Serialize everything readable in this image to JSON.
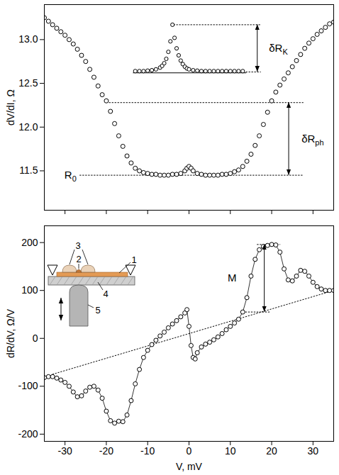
{
  "chart_data": [
    {
      "type": "scatter",
      "ylabel": "dV/dI, Ω",
      "marker": "circle",
      "color": "#000000",
      "tick_labels": "y",
      "xlim": [
        -35,
        35
      ],
      "xticks": [
        -30,
        -20,
        -10,
        0,
        10,
        20,
        30
      ],
      "ylim": [
        11.05,
        13.4
      ],
      "yticks": [
        11.5,
        {
          "value": 12,
          "label": "12.0"
        },
        12.5,
        {
          "value": 13,
          "label": "13.0"
        }
      ],
      "x": [
        -35,
        -34,
        -33,
        -32,
        -31,
        -30,
        -29,
        -28,
        -27,
        -26,
        -25,
        -24,
        -23,
        -22,
        -21,
        -20,
        -19,
        -18,
        -17,
        -16,
        -15,
        -14,
        -13,
        -12,
        -11,
        -10,
        -9,
        -8,
        -7,
        -6,
        -5,
        -4,
        -3,
        -2,
        -1,
        -0.5,
        0,
        0.5,
        1,
        2,
        3,
        4,
        5,
        6,
        7,
        8,
        9,
        10,
        11,
        12,
        13,
        14,
        15,
        16,
        17,
        18,
        19,
        20,
        21,
        22,
        23,
        24,
        25,
        26,
        27,
        28,
        29,
        30,
        31,
        32,
        33,
        34,
        35
      ],
      "values": [
        13.25,
        13.21,
        13.17,
        13.13,
        13.09,
        13.05,
        13.0,
        12.95,
        12.89,
        12.82,
        12.75,
        12.66,
        12.57,
        12.47,
        12.37,
        12.3,
        12.18,
        12.04,
        11.9,
        11.78,
        11.67,
        11.59,
        11.53,
        11.5,
        11.48,
        11.47,
        11.46,
        11.46,
        11.45,
        11.45,
        11.45,
        11.46,
        11.46,
        11.47,
        11.5,
        11.53,
        11.55,
        11.53,
        11.5,
        11.47,
        11.46,
        11.45,
        11.45,
        11.45,
        11.45,
        11.46,
        11.46,
        11.47,
        11.49,
        11.51,
        11.55,
        11.61,
        11.69,
        11.79,
        11.9,
        12.03,
        12.17,
        12.3,
        12.4,
        12.48,
        12.55,
        12.62,
        12.69,
        12.76,
        12.83,
        12.9,
        12.96,
        13.01,
        13.06,
        13.1,
        13.14,
        13.18,
        13.2
      ],
      "inset": {
        "x": [
          -13,
          -12,
          -11,
          -10,
          -9,
          -8,
          -7,
          -6.5,
          -6,
          -5.5,
          -5,
          -4.5,
          -4,
          -3.5,
          -3,
          -2.5,
          -2,
          -1.5,
          -1,
          -0.5,
          0,
          1,
          2,
          3,
          4,
          5,
          6,
          7,
          8,
          9,
          10,
          11,
          12,
          13
        ],
        "values": [
          12.64,
          12.64,
          12.64,
          12.645,
          12.65,
          12.66,
          12.68,
          12.7,
          12.73,
          12.78,
          12.86,
          12.98,
          13.17,
          13.02,
          12.9,
          12.82,
          12.76,
          12.72,
          12.69,
          12.67,
          12.66,
          12.65,
          12.645,
          12.64,
          12.64,
          12.64,
          12.64,
          12.64,
          12.64,
          12.64,
          12.64,
          12.64,
          12.64,
          12.64
        ],
        "axis": {
          "x": [
            -13.5,
            13.8
          ],
          "y": 12.62
        }
      },
      "dotted_lines": [
        {
          "x": [
            -3.7,
            17.3
          ],
          "y": [
            13.17,
            13.17
          ]
        },
        {
          "x": [
            13.8,
            17.3
          ],
          "y": [
            12.63,
            12.63
          ]
        },
        {
          "x": [
            -19.3,
            27.6
          ],
          "y": [
            12.28,
            12.28
          ]
        },
        {
          "x": [
            -26.4,
            27.6
          ],
          "y": [
            11.45,
            11.45
          ]
        }
      ],
      "arrows": [
        {
          "x": 16.6,
          "y": [
            12.63,
            13.17
          ],
          "text": "δR",
          "subscript": "K",
          "label_x": 21.7
        },
        {
          "x": 24.2,
          "y": [
            11.45,
            12.28
          ],
          "text": "δR",
          "subscript": "ph",
          "label_x": 30
        }
      ],
      "labels": [
        {
          "text": "R",
          "subscript": "0",
          "x": -28.6,
          "y": 11.45
        }
      ]
    },
    {
      "type": "line",
      "xlabel": "V, mV",
      "ylabel": "dR/dV, Ω/V",
      "marker": "circle",
      "line_style": "solid",
      "color": "#000000",
      "xlim": [
        -35,
        35
      ],
      "xticks": [
        -30,
        -20,
        -10,
        0,
        10,
        20,
        30
      ],
      "ylim": [
        -215,
        235
      ],
      "yticks": [
        -200,
        -100,
        0,
        100,
        200
      ],
      "x": [
        -35,
        -34,
        -33,
        -32,
        -31,
        -30,
        -29,
        -28,
        -27,
        -26,
        -25,
        -24,
        -23,
        -22,
        -21,
        -20,
        -19,
        -18,
        -17,
        -16,
        -15,
        -14,
        -13,
        -12,
        -11,
        -10,
        -9,
        -8,
        -7,
        -6,
        -5,
        -4,
        -3,
        -2,
        -1,
        -0.5,
        0,
        0.5,
        1,
        1.5,
        2,
        3,
        4,
        5,
        6,
        7,
        8,
        9,
        10,
        11,
        12,
        13,
        14,
        15,
        16,
        17,
        18,
        19,
        20,
        21,
        22,
        23,
        24,
        25,
        26,
        27,
        28,
        29,
        30,
        31,
        32,
        33,
        34,
        35
      ],
      "values": [
        -82,
        -80,
        -80,
        -83,
        -87,
        -92,
        -100,
        -112,
        -122,
        -120,
        -110,
        -102,
        -100,
        -108,
        -125,
        -152,
        -172,
        -177,
        -173,
        -174,
        -160,
        -130,
        -95,
        -65,
        -40,
        -25,
        -13,
        -4,
        5,
        13,
        22,
        30,
        37,
        45,
        53,
        60,
        25,
        -15,
        -40,
        -43,
        -30,
        -18,
        -12,
        -8,
        -3,
        3,
        10,
        18,
        25,
        32,
        40,
        55,
        85,
        130,
        165,
        185,
        192,
        194,
        196,
        195,
        180,
        145,
        122,
        120,
        130,
        142,
        140,
        130,
        117,
        108,
        103,
        100,
        100,
        100
      ],
      "dotted_lines": [
        {
          "x": [
            -33,
            35
          ],
          "y": [
            -75,
            100
          ]
        },
        {
          "x": [
            16.5,
            22
          ],
          "y": [
            196,
            196
          ]
        },
        {
          "x": [
            13,
            19.5
          ],
          "y": [
            55,
            55
          ]
        }
      ],
      "arrows": [
        {
          "x": 18.3,
          "y": [
            55,
            196
          ],
          "text": "M",
          "label_x": 10.5
        }
      ],
      "schematic_labels": [
        "1",
        "2",
        "3",
        "4",
        "5"
      ]
    }
  ]
}
